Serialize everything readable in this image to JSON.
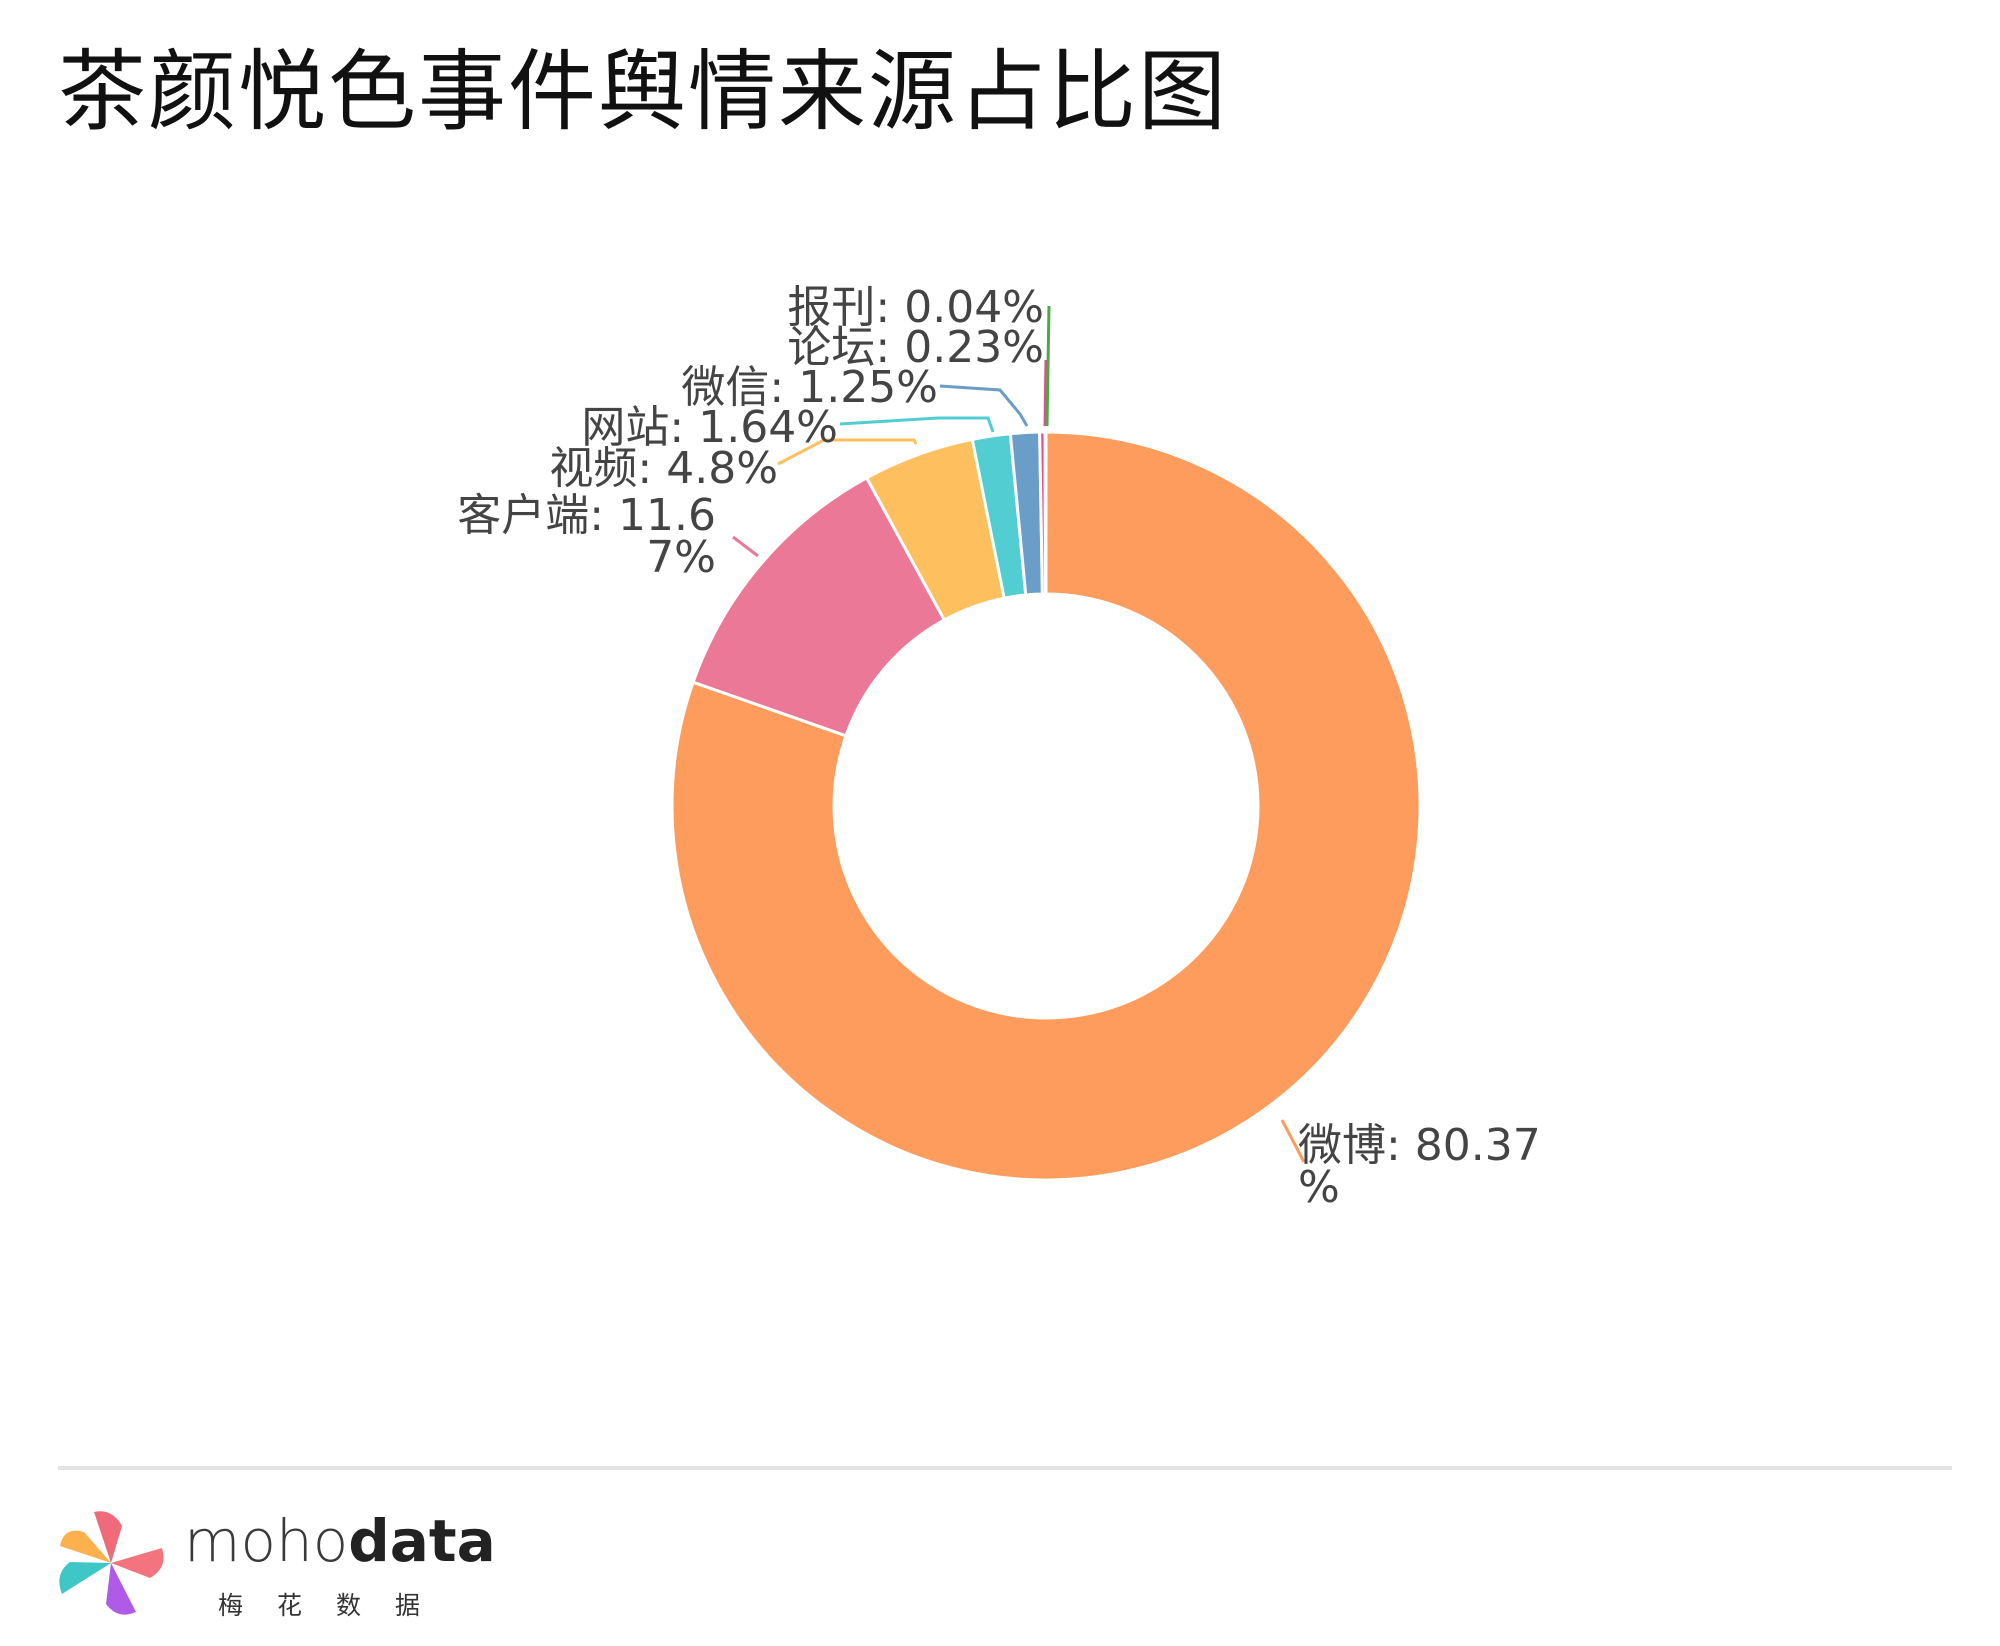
{
  "title": "茶颜悦色事件舆情来源占比图",
  "chart_data": {
    "type": "pie",
    "donut": true,
    "title": "茶颜悦色事件舆情来源占比图",
    "slices": [
      {
        "name": "微博",
        "value": 80.37,
        "label_lines": [
          "微博: 80.37",
          "%"
        ],
        "color": "#fd9c5c"
      },
      {
        "name": "客户端",
        "value": 11.67,
        "label_lines": [
          "客户端: 11.6",
          "7%"
        ],
        "color": "#eb7896"
      },
      {
        "name": "视频",
        "value": 4.8,
        "label_lines": [
          "视频: 4.8%"
        ],
        "color": "#fec05f"
      },
      {
        "name": "网站",
        "value": 1.64,
        "label_lines": [
          "网站: 1.64%"
        ],
        "color": "#52ced3"
      },
      {
        "name": "微信",
        "value": 1.25,
        "label_lines": [
          "微信: 1.25%"
        ],
        "color": "#6a9ec8"
      },
      {
        "name": "论坛",
        "value": 0.23,
        "label_lines": [
          "论坛: 0.23%"
        ],
        "color": "#e84894"
      },
      {
        "name": "报刊",
        "value": 0.04,
        "label_lines": [
          "报刊: 0.04%"
        ],
        "color": "#4aa845"
      }
    ]
  },
  "footer": {
    "brand_thin": "moho",
    "brand_bold": "data",
    "brand_sub": "梅花数据"
  }
}
